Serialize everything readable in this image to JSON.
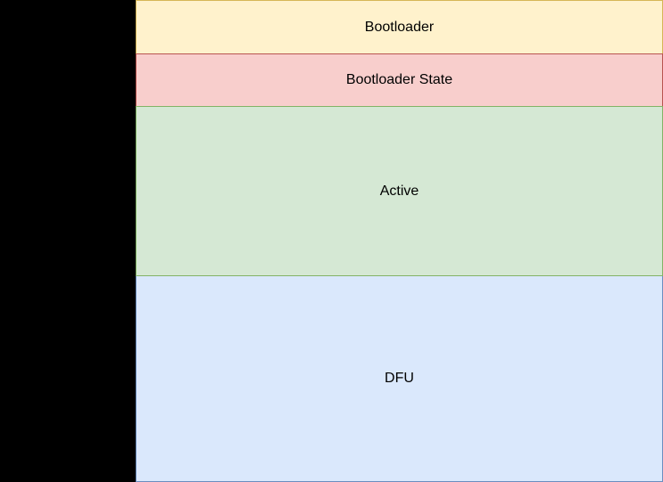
{
  "diagram": {
    "black_region": {
      "color": "#000000"
    },
    "text_color": "#000000",
    "blocks": [
      {
        "id": "bootloader",
        "label": "Bootloader",
        "fill": "#fff2cc",
        "stroke": "#d6b656"
      },
      {
        "id": "bootloader-state",
        "label": "Bootloader State",
        "fill": "#f8cecc",
        "stroke": "#b85450"
      },
      {
        "id": "active",
        "label": "Active",
        "fill": "#d5e8d4",
        "stroke": "#82b366"
      },
      {
        "id": "dfu",
        "label": "DFU",
        "fill": "#dae8fc",
        "stroke": "#6c8ebf"
      }
    ]
  }
}
